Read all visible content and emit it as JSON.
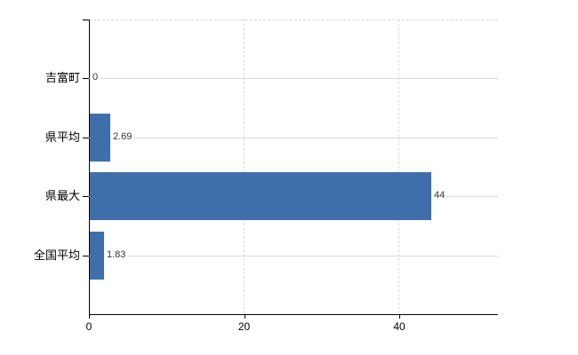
{
  "chart_data": {
    "type": "bar",
    "orientation": "horizontal",
    "title": "",
    "xlabel": "",
    "ylabel": "",
    "categories": [
      "吉富町",
      "県平均",
      "県最大",
      "全国平均"
    ],
    "values": [
      0,
      2.69,
      44,
      1.83
    ],
    "value_labels": [
      "0",
      "2.69",
      "44",
      "1.83"
    ],
    "x_ticks": [
      0,
      20,
      40
    ],
    "x_tick_labels": [
      "0",
      "20",
      "40"
    ],
    "xlim": [
      0,
      52.7
    ],
    "grid": {
      "horizontal": "solid",
      "vertical": "dashed",
      "top_border": "dashed"
    },
    "legend": "none",
    "colors": {
      "bar": "#3f6fab",
      "axis": "#000000",
      "gridline_solid": "#d5dcd5",
      "gridline_dashed": "#d9d9d9",
      "category_label": "#000000",
      "value_label": "#333333",
      "background": "#ffffff"
    }
  }
}
